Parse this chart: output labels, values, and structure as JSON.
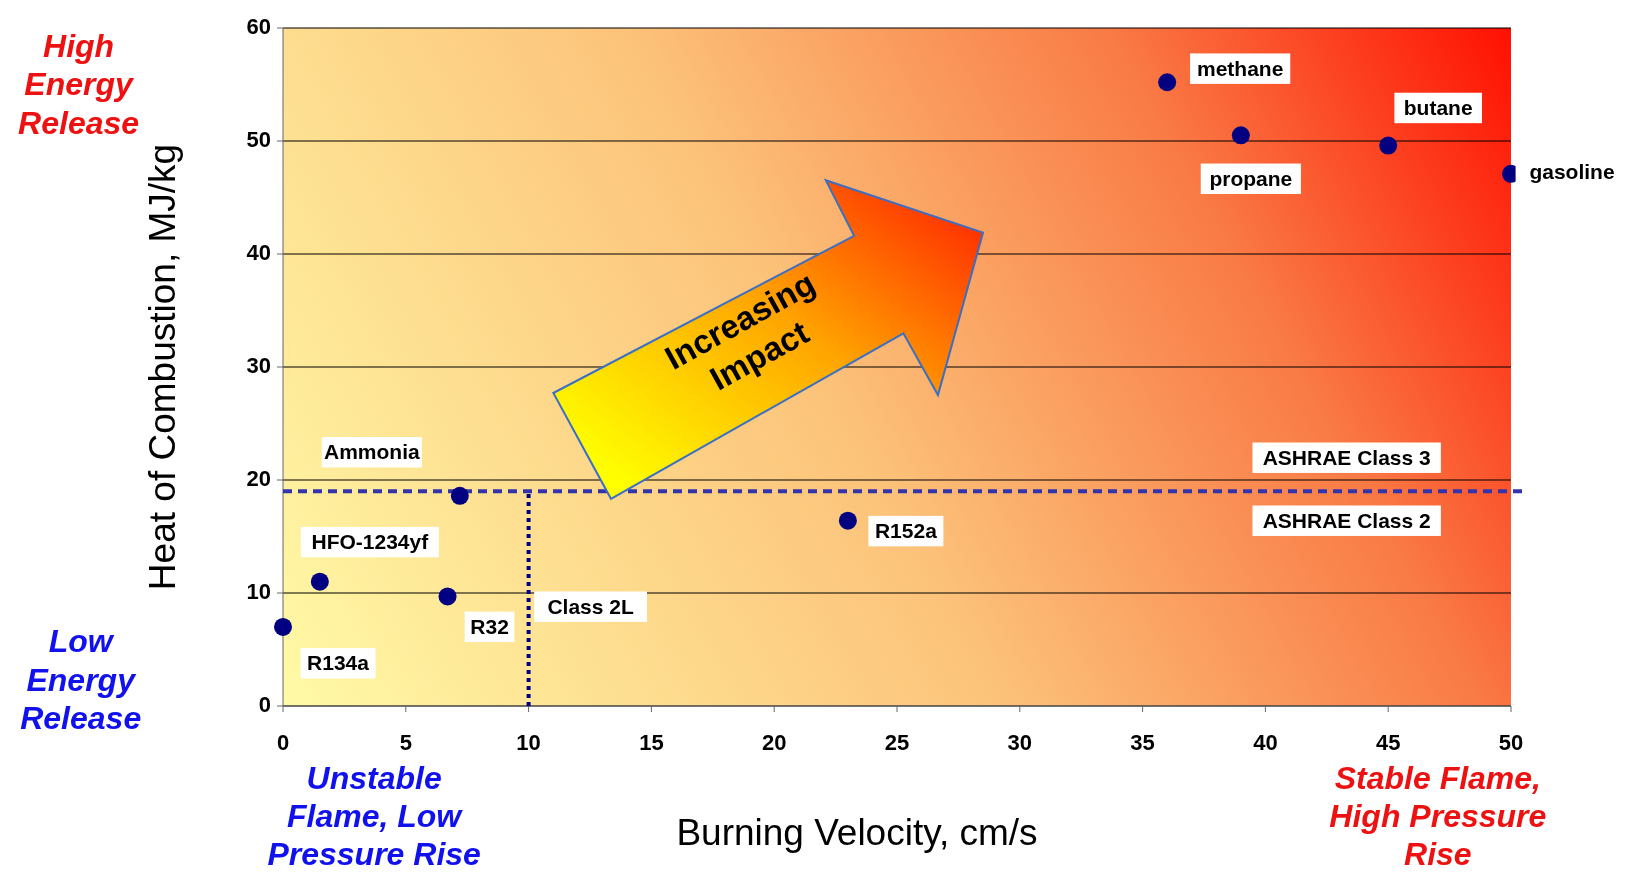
{
  "chart_data": {
    "type": "scatter",
    "xlabel": "Burning Velocity, cm/s",
    "ylabel": "Heat of Combustion, MJ/kg",
    "x": [
      0,
      1.5,
      6.7,
      7.2,
      23,
      36,
      39,
      45,
      50
    ],
    "values": [
      7,
      11,
      9.7,
      18.6,
      16.4,
      55.2,
      50.5,
      49.6,
      47.1
    ],
    "color": "#000080",
    "marker": "circle",
    "grid": "y",
    "xlim": [
      0,
      50
    ],
    "xticks": [
      0,
      5,
      10,
      15,
      20,
      25,
      30,
      35,
      40,
      45,
      50
    ],
    "ylim": [
      0,
      60
    ],
    "yticks": [
      0,
      10,
      20,
      30,
      40,
      50,
      60
    ],
    "ref_lines": [
      {
        "axis": "y",
        "value": 19,
        "label": "ASHRAE Class 3",
        "color": "#3333aa",
        "line_style": "dashed"
      },
      {
        "axis": "x",
        "value": 10,
        "label": "Class 2L",
        "color": "#000080",
        "line_style": "dotted"
      }
    ],
    "annotations": [
      "High Energy Release",
      "Low Energy Release",
      "Unstable Flame, Low Pressure Rise",
      "Stable Flame, High Pressure Rise",
      "Increasing Impact",
      {
        "text": "ASHRAE Class 2",
        "y": 19
      },
      {
        "text": "R134a",
        "x": 0,
        "y": 7
      },
      {
        "text": "HFO-1234yf",
        "x": 1.5,
        "y": 11
      },
      {
        "text": "R32",
        "x": 6.7,
        "y": 9.7
      },
      {
        "text": "Ammonia",
        "x": 7.2,
        "y": 18.6
      },
      {
        "text": "R152a",
        "x": 23,
        "y": 16.4
      },
      {
        "text": "methane",
        "x": 36,
        "y": 55.2
      },
      {
        "text": "propane",
        "x": 39,
        "y": 50.5
      },
      {
        "text": "butane",
        "x": 45,
        "y": 49.6
      },
      {
        "text": "gasoline",
        "x": 50,
        "y": 47.1
      }
    ]
  }
}
